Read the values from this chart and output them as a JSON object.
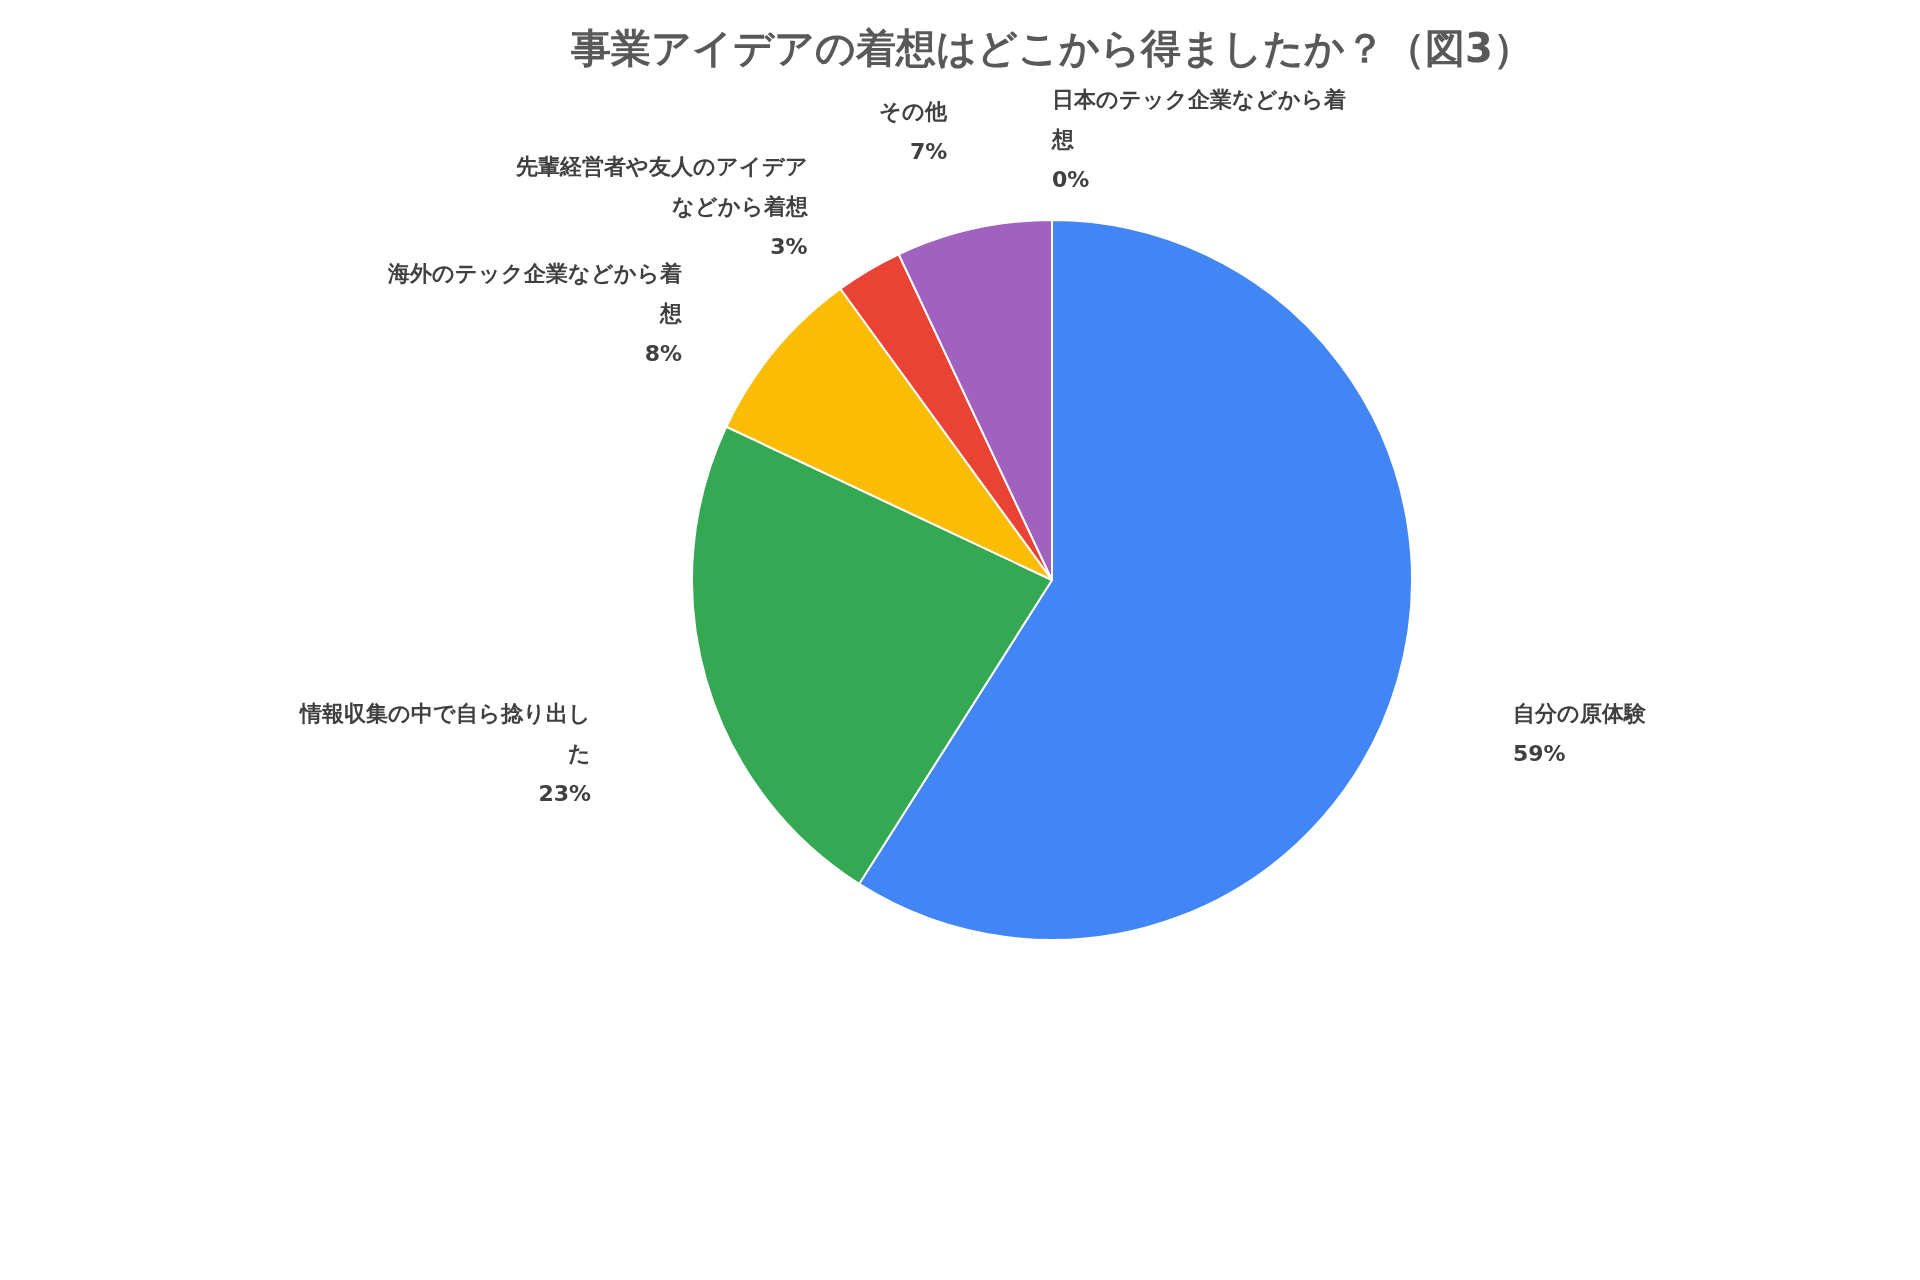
{
  "chart_data": {
    "type": "pie",
    "title": "事業アイデアの着想はどこから得ましたか？（図3）",
    "categories": [
      "自分の原体験",
      "情報収集の中で自ら捻り出した",
      "海外のテック企業などから着想",
      "先輩経営者や友人のアイデアなどから着想",
      "その他",
      "日本のテック企業などから着想"
    ],
    "values": [
      59,
      23,
      8,
      3,
      7,
      0
    ],
    "value_labels": [
      "59%",
      "23%",
      "8%",
      "3%",
      "7%",
      "0%"
    ],
    "colors": [
      "#4285f4",
      "#34a853",
      "#fbbc04",
      "#ea4335",
      "#a061bf",
      "#0b2060"
    ]
  }
}
